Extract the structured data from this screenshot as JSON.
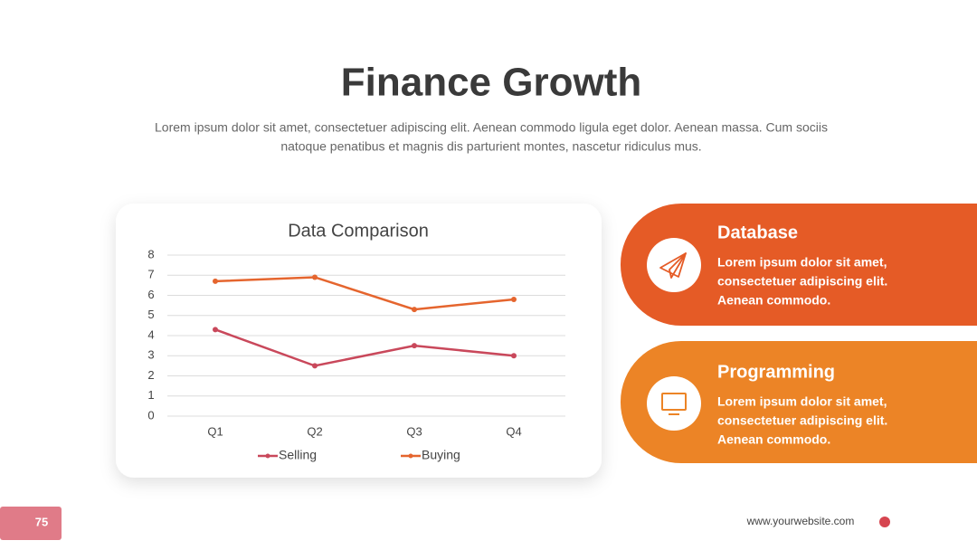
{
  "header": {
    "title": "Finance Growth",
    "subtitle": [
      "Lorem ipsum dolor sit amet, consectetuer adipiscing elit. Aenean commodo ligula eget dolor. Aenean massa. Cum sociis",
      "natoque penatibus et magnis dis parturient montes, nascetur ridiculus mus."
    ]
  },
  "chart_data": {
    "type": "line",
    "title": "Data Comparison",
    "categories": [
      "Q1",
      "Q2",
      "Q3",
      "Q4"
    ],
    "series": [
      {
        "name": "Selling",
        "color": "#c9485b",
        "values": [
          4.3,
          2.5,
          3.5,
          3.0
        ]
      },
      {
        "name": "Buying",
        "color": "#e5652e",
        "values": [
          6.7,
          6.9,
          5.3,
          5.8
        ]
      }
    ],
    "ylim": [
      0,
      8
    ],
    "yticks": [
      0,
      1,
      2,
      3,
      4,
      5,
      6,
      7,
      8
    ],
    "grid": true,
    "legend": "bottom"
  },
  "cards": [
    {
      "title": "Database",
      "lines": [
        "Lorem ipsum dolor sit amet,",
        "consectetuer adipiscing elit.",
        "Aenean commodo."
      ]
    },
    {
      "title": "Programming",
      "lines": [
        "Lorem ipsum dolor sit amet,",
        "consectetuer adipiscing elit.",
        "Aenean commodo."
      ]
    }
  ],
  "footer": {
    "page": "75",
    "website": "www.yourwebsite.com"
  }
}
